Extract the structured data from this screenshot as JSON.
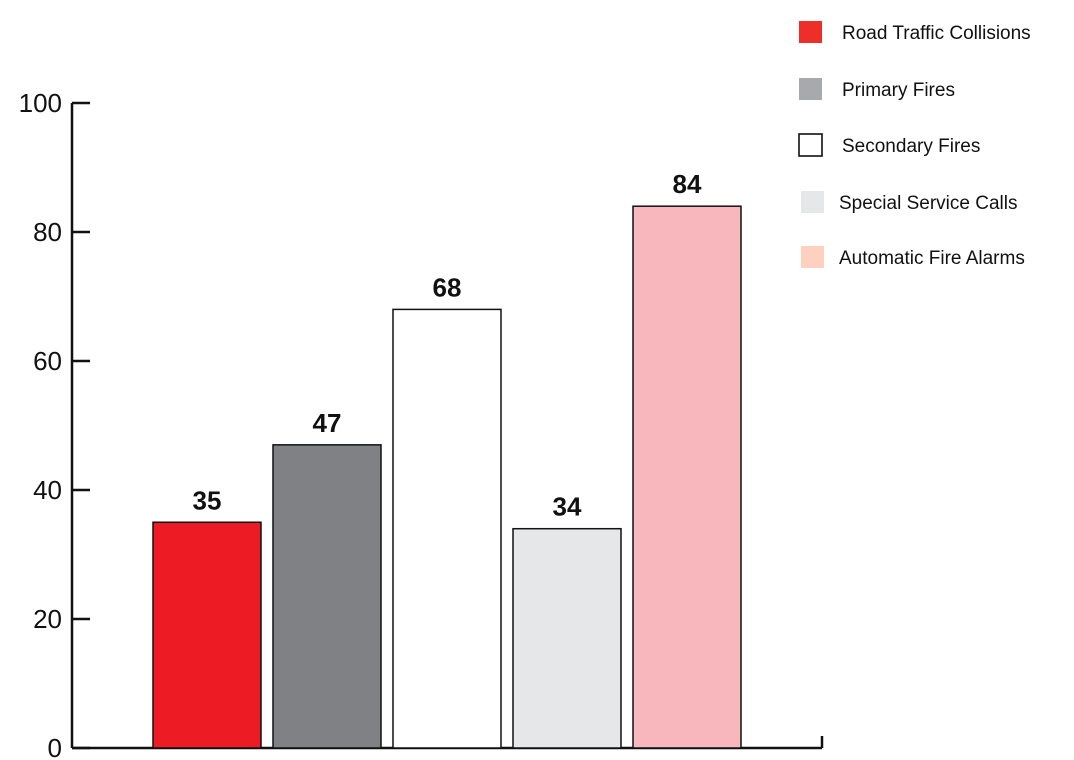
{
  "chart_data": {
    "type": "bar",
    "categories": [
      "Road Traffic Collisions",
      "Primary Fires",
      "Secondary Fires",
      "Special Service Calls",
      "Automatic Fire Alarms"
    ],
    "values": [
      35,
      47,
      68,
      34,
      84
    ],
    "data_labels": [
      "35",
      "47",
      "68",
      "34",
      "84"
    ],
    "colors": [
      "#ed1c24",
      "#808184",
      "#ffffff",
      "#e6e7e8",
      "#f7b7bd"
    ],
    "legend_swatch_colors": [
      "#ee2e28",
      "#a7a9ac",
      "#ffffff",
      "#e6e7e8",
      "#fdd0c0"
    ],
    "title": "",
    "xlabel": "",
    "ylabel": "",
    "ylim": [
      0,
      100
    ],
    "yticks": [
      0,
      20,
      40,
      60,
      80,
      100
    ],
    "ytick_labels": [
      "0",
      "20",
      "40",
      "60",
      "80",
      "100"
    ],
    "grid": false,
    "legend": {
      "position": "top-right",
      "entries": [
        "Road Traffic Collisions",
        "Primary Fires",
        "Secondary Fires",
        "Special Service Calls",
        "Automatic Fire Alarms"
      ]
    }
  }
}
